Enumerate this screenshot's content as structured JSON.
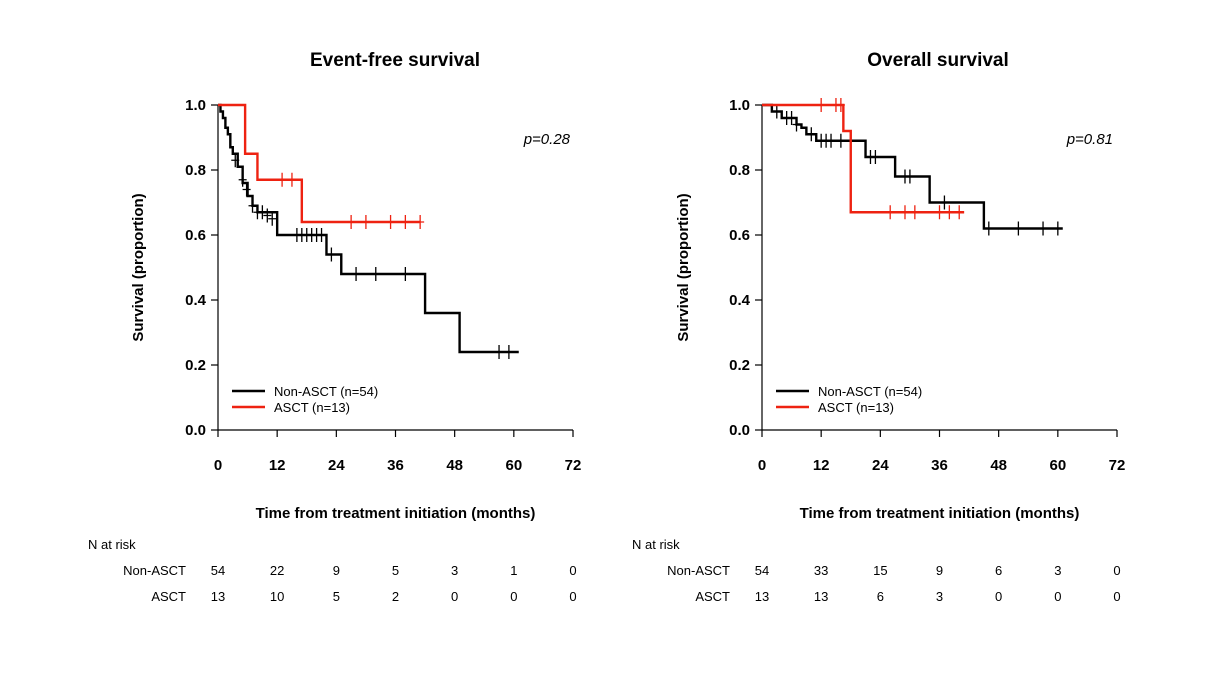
{
  "colors": {
    "non_asct": "#000000",
    "asct": "#ee2211"
  },
  "risk_header": "N at risk",
  "chart_data": [
    {
      "type": "line",
      "subtype": "kaplan-meier",
      "title": "Event-free survival",
      "xlabel": "Time from treatment initiation (months)",
      "ylabel": "Survival (proportion)",
      "xlim": [
        0,
        72
      ],
      "ylim": [
        0,
        1
      ],
      "xticks": [
        "0",
        "12",
        "24",
        "36",
        "48",
        "60",
        "72"
      ],
      "yticks": [
        "0.0",
        "0.2",
        "0.4",
        "0.6",
        "0.8",
        "1.0"
      ],
      "pvalue": "p=0.28",
      "legend_position": "bottom-left",
      "series": [
        {
          "name": "Non-ASCT (n=54)",
          "color": "#000000",
          "steps": [
            [
              0,
              1.0
            ],
            [
              0.5,
              0.98
            ],
            [
              1,
              0.96
            ],
            [
              1.5,
              0.93
            ],
            [
              2,
              0.91
            ],
            [
              2.5,
              0.87
            ],
            [
              3,
              0.85
            ],
            [
              4,
              0.81
            ],
            [
              5,
              0.76
            ],
            [
              6,
              0.72
            ],
            [
              7,
              0.69
            ],
            [
              8,
              0.67
            ],
            [
              12,
              0.6
            ],
            [
              22,
              0.54
            ],
            [
              25,
              0.48
            ],
            [
              42,
              0.36
            ],
            [
              49,
              0.24
            ],
            [
              61,
              0.24
            ]
          ],
          "censor": [
            [
              3.5,
              0.83
            ],
            [
              5,
              0.77
            ],
            [
              5.8,
              0.74
            ],
            [
              7,
              0.69
            ],
            [
              8,
              0.67
            ],
            [
              9,
              0.67
            ],
            [
              10,
              0.66
            ],
            [
              11,
              0.65
            ],
            [
              16,
              0.6
            ],
            [
              17,
              0.6
            ],
            [
              18,
              0.6
            ],
            [
              19,
              0.6
            ],
            [
              20,
              0.6
            ],
            [
              21,
              0.6
            ],
            [
              23,
              0.54
            ],
            [
              28,
              0.48
            ],
            [
              32,
              0.48
            ],
            [
              38,
              0.48
            ],
            [
              57,
              0.24
            ],
            [
              59,
              0.24
            ]
          ]
        },
        {
          "name": "ASCT (n=13)",
          "color": "#ee2211",
          "steps": [
            [
              0,
              1.0
            ],
            [
              5.5,
              0.85
            ],
            [
              8,
              0.77
            ],
            [
              17,
              0.64
            ],
            [
              41,
              0.64
            ]
          ],
          "censor": [
            [
              13,
              0.77
            ],
            [
              15,
              0.77
            ],
            [
              27,
              0.64
            ],
            [
              30,
              0.64
            ],
            [
              35,
              0.64
            ],
            [
              38,
              0.64
            ],
            [
              41,
              0.64
            ]
          ]
        }
      ],
      "risk_table": {
        "times": [
          "0",
          "12",
          "24",
          "36",
          "48",
          "60",
          "72"
        ],
        "rows": [
          {
            "label": "Non-ASCT",
            "values": [
              "54",
              "22",
              "9",
              "5",
              "3",
              "1",
              "0"
            ]
          },
          {
            "label": "ASCT",
            "values": [
              "13",
              "10",
              "5",
              "2",
              "0",
              "0",
              "0"
            ]
          }
        ]
      }
    },
    {
      "type": "line",
      "subtype": "kaplan-meier",
      "title": "Overall survival",
      "xlabel": "Time from treatment initiation (months)",
      "ylabel": "Survival (proportion)",
      "xlim": [
        0,
        72
      ],
      "ylim": [
        0,
        1
      ],
      "xticks": [
        "0",
        "12",
        "24",
        "36",
        "48",
        "60",
        "72"
      ],
      "yticks": [
        "0.0",
        "0.2",
        "0.4",
        "0.6",
        "0.8",
        "1.0"
      ],
      "pvalue": "p=0.81",
      "legend_position": "bottom-left",
      "series": [
        {
          "name": "Non-ASCT (n=54)",
          "color": "#000000",
          "steps": [
            [
              0,
              1.0
            ],
            [
              2,
              0.98
            ],
            [
              4,
              0.96
            ],
            [
              7,
              0.94
            ],
            [
              8,
              0.93
            ],
            [
              9,
              0.91
            ],
            [
              11,
              0.89
            ],
            [
              21,
              0.84
            ],
            [
              27,
              0.78
            ],
            [
              34,
              0.7
            ],
            [
              45,
              0.62
            ],
            [
              61,
              0.62
            ]
          ],
          "censor": [
            [
              3,
              0.98
            ],
            [
              5,
              0.96
            ],
            [
              6,
              0.96
            ],
            [
              7,
              0.94
            ],
            [
              10,
              0.91
            ],
            [
              12,
              0.89
            ],
            [
              13,
              0.89
            ],
            [
              14,
              0.89
            ],
            [
              16,
              0.89
            ],
            [
              18,
              0.89
            ],
            [
              22,
              0.84
            ],
            [
              23,
              0.84
            ],
            [
              29,
              0.78
            ],
            [
              30,
              0.78
            ],
            [
              37,
              0.7
            ],
            [
              46,
              0.62
            ],
            [
              52,
              0.62
            ],
            [
              57,
              0.62
            ],
            [
              60,
              0.62
            ]
          ]
        },
        {
          "name": "ASCT (n=13)",
          "color": "#ee2211",
          "steps": [
            [
              0,
              1.0
            ],
            [
              16.5,
              0.92
            ],
            [
              18,
              0.67
            ],
            [
              41,
              0.67
            ]
          ],
          "censor": [
            [
              12,
              1.0
            ],
            [
              15,
              1.0
            ],
            [
              16,
              1.0
            ],
            [
              26,
              0.67
            ],
            [
              29,
              0.67
            ],
            [
              31,
              0.67
            ],
            [
              36,
              0.67
            ],
            [
              38,
              0.67
            ],
            [
              40,
              0.67
            ]
          ]
        }
      ],
      "risk_table": {
        "times": [
          "0",
          "12",
          "24",
          "36",
          "48",
          "60",
          "72"
        ],
        "rows": [
          {
            "label": "Non-ASCT",
            "values": [
              "54",
              "33",
              "15",
              "9",
              "6",
              "3",
              "0"
            ]
          },
          {
            "label": "ASCT",
            "values": [
              "13",
              "13",
              "6",
              "3",
              "0",
              "0",
              "0"
            ]
          }
        ]
      }
    }
  ]
}
